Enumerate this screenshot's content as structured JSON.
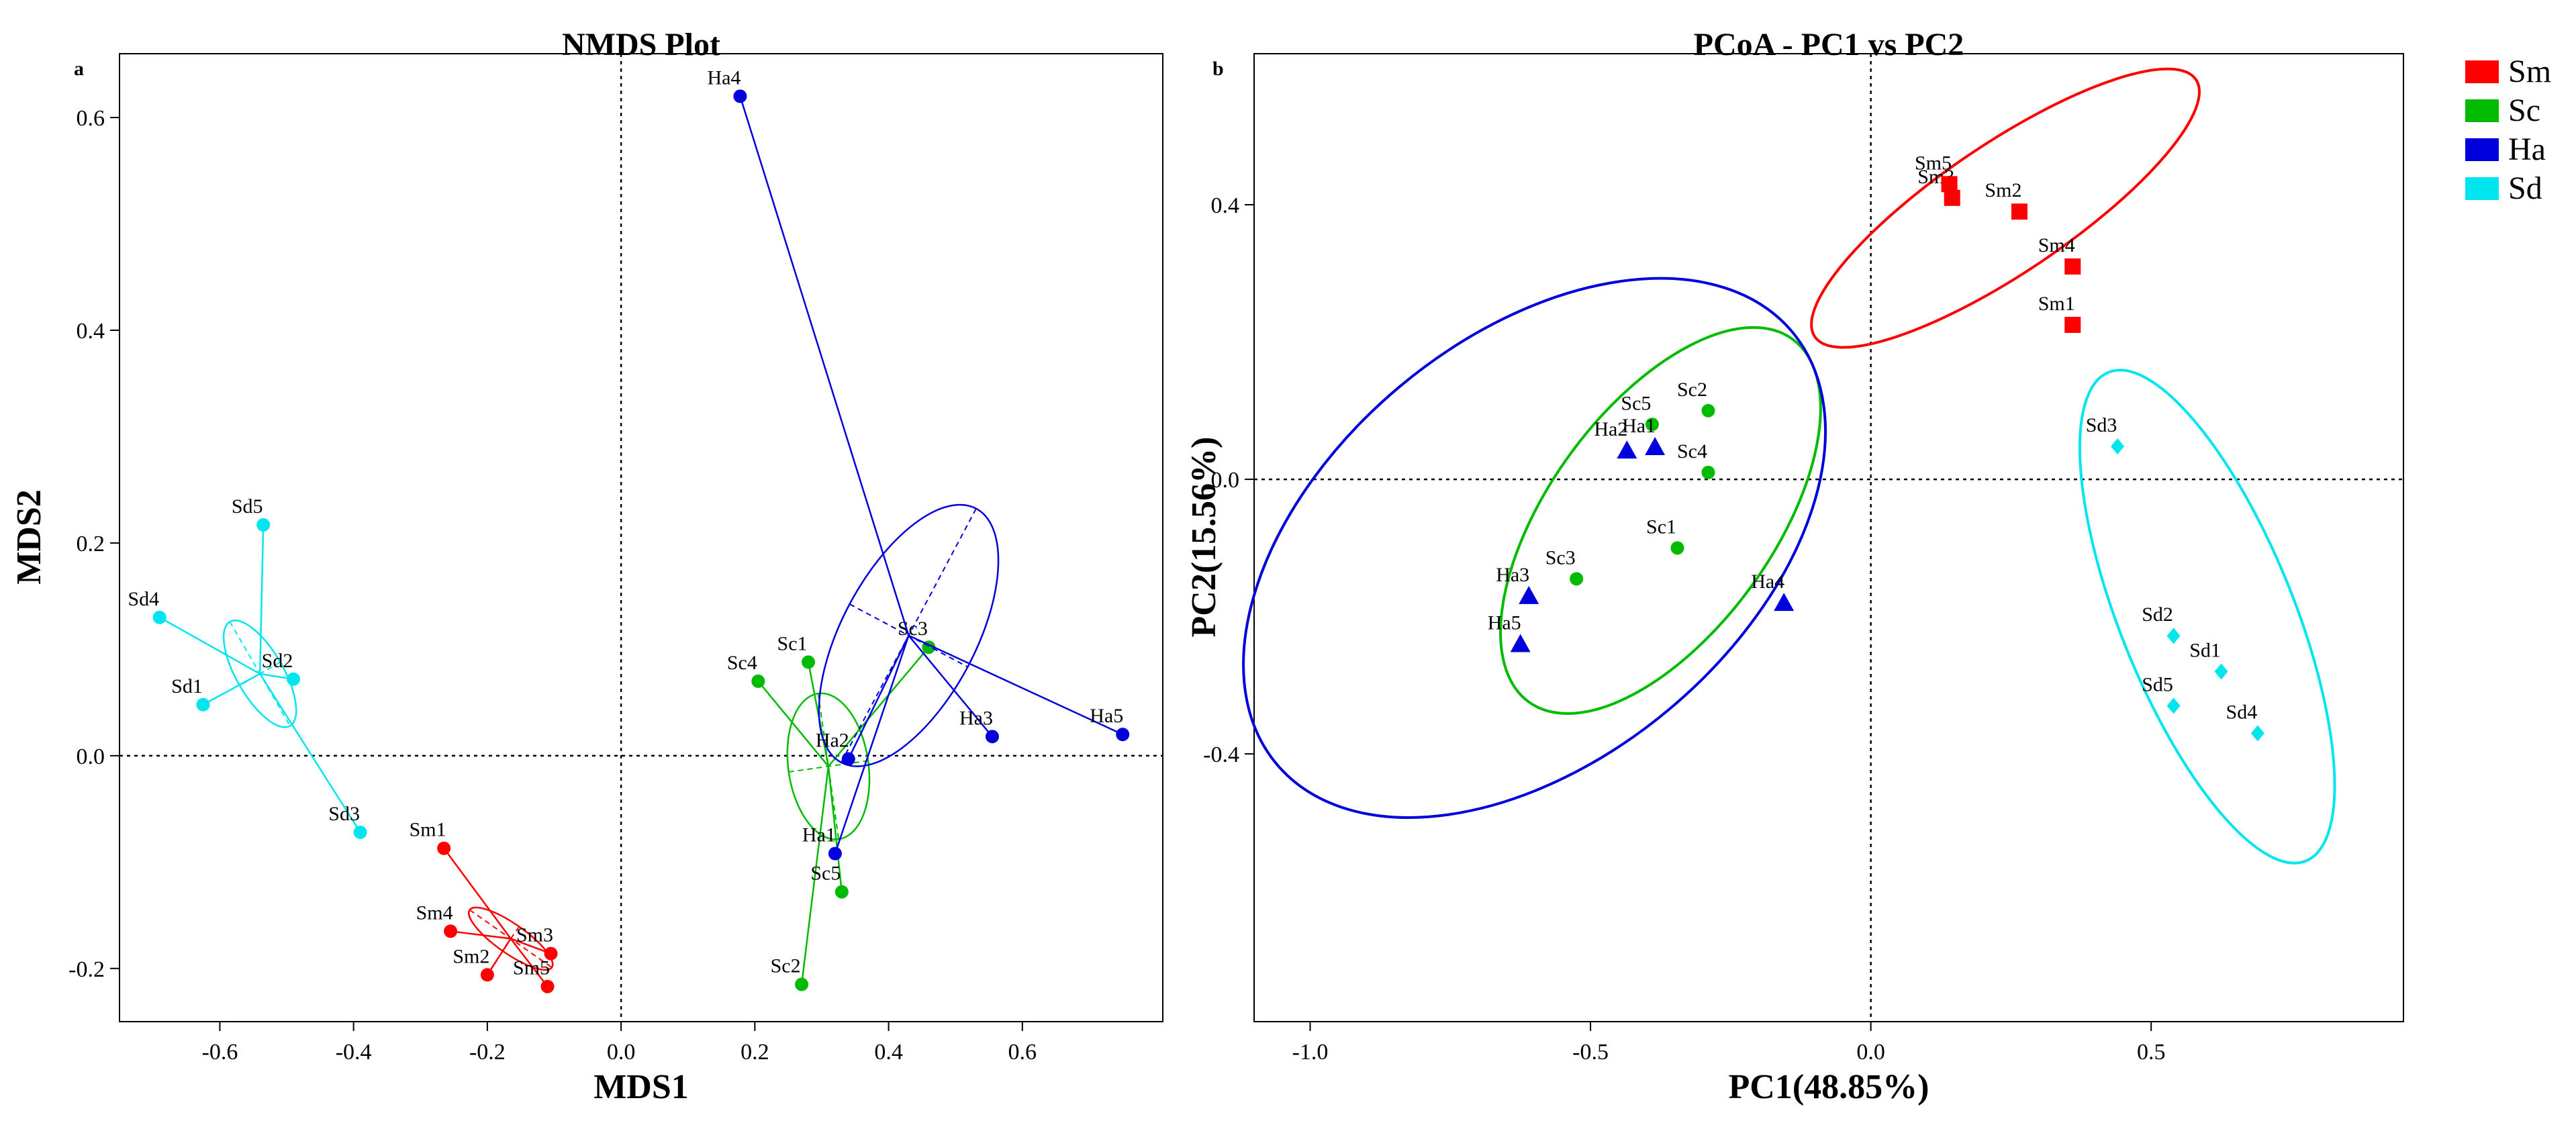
{
  "chart_data": [
    {
      "type": "scatter",
      "panel": "a",
      "title": "NMDS Plot",
      "xlabel": "MDS1",
      "ylabel": "MDS2",
      "xlim": [
        -0.75,
        0.81
      ],
      "ylim": [
        -0.25,
        0.66
      ],
      "xticks": [
        -0.6,
        -0.4,
        -0.2,
        0.0,
        0.2,
        0.4,
        0.6
      ],
      "xtick_labels": [
        "-0.6",
        "-0.4",
        "-0.2",
        "0.0",
        "0.2",
        "0.4",
        "0.6"
      ],
      "yticks": [
        -0.2,
        0.0,
        0.2,
        0.4,
        0.6
      ],
      "ytick_labels": [
        "-0.2",
        "0.0",
        "0.2",
        "0.4",
        "0.6"
      ],
      "reference_lines": {
        "x": 0,
        "y": 0
      },
      "series": [
        {
          "name": "Sm",
          "color": "#ff0000",
          "marker": "circle",
          "centroid": [
            -0.165,
            -0.172
          ],
          "ellipse": {
            "center": [
              -0.165,
              -0.172
            ],
            "rx": 0.075,
            "ry": 0.022,
            "angle_deg": -35
          },
          "points": [
            {
              "label": "Sm1",
              "x": -0.265,
              "y": -0.087
            },
            {
              "label": "Sm2",
              "x": -0.2,
              "y": -0.206
            },
            {
              "label": "Sm3",
              "x": -0.105,
              "y": -0.186
            },
            {
              "label": "Sm4",
              "x": -0.255,
              "y": -0.165
            },
            {
              "label": "Sm5",
              "x": -0.11,
              "y": -0.217
            }
          ]
        },
        {
          "name": "Sc",
          "color": "#00bb00",
          "marker": "circle",
          "centroid": [
            0.31,
            -0.01
          ],
          "ellipse": {
            "center": [
              0.31,
              -0.01
            ],
            "rx": 0.06,
            "ry": 0.11,
            "angle_deg": 8
          },
          "points": [
            {
              "label": "Sc1",
              "x": 0.28,
              "y": 0.088
            },
            {
              "label": "Sc2",
              "x": 0.27,
              "y": -0.215
            },
            {
              "label": "Sc3",
              "x": 0.46,
              "y": 0.102
            },
            {
              "label": "Sc4",
              "x": 0.205,
              "y": 0.07
            },
            {
              "label": "Sc5",
              "x": 0.33,
              "y": -0.128
            }
          ]
        },
        {
          "name": "Ha",
          "color": "#0000dd",
          "marker": "circle",
          "centroid": [
            0.43,
            0.113
          ],
          "ellipse": {
            "center": [
              0.43,
              0.113
            ],
            "rx": 0.215,
            "ry": 0.1,
            "angle_deg": 62
          },
          "points": [
            {
              "label": "Ha1",
              "x": 0.32,
              "y": -0.092
            },
            {
              "label": "Ha2",
              "x": 0.34,
              "y": -0.003
            },
            {
              "label": "Ha3",
              "x": 0.555,
              "y": 0.018
            },
            {
              "label": "Ha4",
              "x": 0.178,
              "y": 0.62
            },
            {
              "label": "Ha5",
              "x": 0.75,
              "y": 0.02
            }
          ]
        },
        {
          "name": "Sd",
          "color": "#00e5ee",
          "marker": "circle",
          "centroid": [
            -0.54,
            0.077
          ],
          "ellipse": {
            "center": [
              -0.54,
              0.077
            ],
            "rx": 0.09,
            "ry": 0.035,
            "angle_deg": -60
          },
          "points": [
            {
              "label": "Sd1",
              "x": -0.625,
              "y": 0.048
            },
            {
              "label": "Sd2",
              "x": -0.49,
              "y": 0.072
            },
            {
              "label": "Sd3",
              "x": -0.39,
              "y": -0.072
            },
            {
              "label": "Sd4",
              "x": -0.69,
              "y": 0.13
            },
            {
              "label": "Sd5",
              "x": -0.535,
              "y": 0.217
            }
          ]
        }
      ]
    },
    {
      "type": "scatter",
      "panel": "b",
      "title": "PCoA - PC1 vs PC2",
      "xlabel": "PC1(48.85%)",
      "ylabel": "PC2(15.56%)",
      "xlim": [
        -1.1,
        0.95
      ],
      "ylim": [
        -0.79,
        0.62
      ],
      "xticks": [
        -1.0,
        -0.5,
        0.0,
        0.5
      ],
      "xtick_labels": [
        "-1.0",
        "-0.5",
        "0.0",
        "0.5"
      ],
      "yticks": [
        -0.4,
        0.0,
        0.4
      ],
      "ytick_labels": [
        "-0.4",
        "0.0",
        "0.4"
      ],
      "reference_lines": {
        "x": 0,
        "y": 0
      },
      "legend": {
        "position": "top-right",
        "entries": [
          "Sm",
          "Sc",
          "Ha",
          "Sd"
        ]
      },
      "series": [
        {
          "name": "Sm",
          "color": "#ff0000",
          "marker": "square",
          "ellipse": {
            "center": [
              0.24,
              0.395
            ],
            "rx": 0.41,
            "ry": 0.115,
            "angle_deg": 34
          },
          "points": [
            {
              "label": "Sm1",
              "x": 0.36,
              "y": 0.225
            },
            {
              "label": "Sm2",
              "x": 0.265,
              "y": 0.39
            },
            {
              "label": "Sm3",
              "x": 0.145,
              "y": 0.41
            },
            {
              "label": "Sm4",
              "x": 0.36,
              "y": 0.31
            },
            {
              "label": "Sm5",
              "x": 0.14,
              "y": 0.43
            }
          ]
        },
        {
          "name": "Sc",
          "color": "#00bb00",
          "marker": "circle",
          "ellipse": {
            "center": [
              -0.375,
              -0.06
            ],
            "rx": 0.4,
            "ry": 0.2,
            "angle_deg": 54
          },
          "points": [
            {
              "label": "Sc1",
              "x": -0.345,
              "y": -0.1
            },
            {
              "label": "Sc2",
              "x": -0.29,
              "y": 0.1
            },
            {
              "label": "Sc3",
              "x": -0.525,
              "y": -0.145
            },
            {
              "label": "Sc4",
              "x": -0.29,
              "y": 0.01
            },
            {
              "label": "Sc5",
              "x": -0.39,
              "y": 0.08
            }
          ]
        },
        {
          "name": "Ha",
          "color": "#0000dd",
          "marker": "triangle",
          "ellipse": {
            "center": [
              -0.6,
              -0.1
            ],
            "rx": 0.6,
            "ry": 0.375,
            "angle_deg": 40
          },
          "points": [
            {
              "label": "Ha1",
              "x": -0.385,
              "y": 0.047
            },
            {
              "label": "Ha2",
              "x": -0.435,
              "y": 0.042
            },
            {
              "label": "Ha3",
              "x": -0.61,
              "y": -0.17
            },
            {
              "label": "Ha4",
              "x": -0.155,
              "y": -0.18
            },
            {
              "label": "Ha5",
              "x": -0.625,
              "y": -0.24
            }
          ]
        },
        {
          "name": "Sd",
          "color": "#00e5ee",
          "marker": "diamond",
          "ellipse": {
            "center": [
              0.6,
              -0.2
            ],
            "rx": 0.47,
            "ry": 0.155,
            "angle_deg": -68
          },
          "points": [
            {
              "label": "Sd1",
              "x": 0.625,
              "y": -0.28
            },
            {
              "label": "Sd2",
              "x": 0.54,
              "y": -0.228
            },
            {
              "label": "Sd3",
              "x": 0.44,
              "y": 0.048
            },
            {
              "label": "Sd4",
              "x": 0.69,
              "y": -0.37
            },
            {
              "label": "Sd5",
              "x": 0.54,
              "y": -0.33
            }
          ]
        }
      ]
    }
  ]
}
